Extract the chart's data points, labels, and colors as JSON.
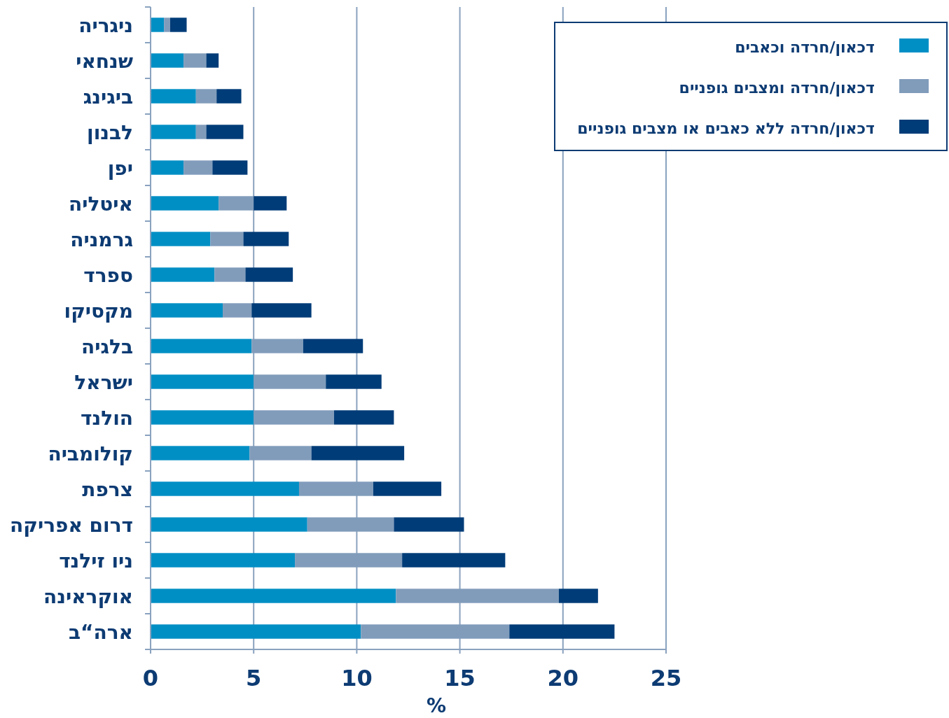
{
  "chart_data": {
    "type": "bar",
    "orientation": "horizontal",
    "stacked": true,
    "xlabel": "%",
    "categories": [
      "ניגריה",
      "שנחאי",
      "ביגינג",
      "לבנון",
      "יפן",
      "איטליה",
      "גרמניה",
      "ספרד",
      "מקסיקו",
      "בלגיה",
      "ישראל",
      "הולנד",
      "קולומביה",
      "צרפת",
      "דרום אפריקה",
      "ניו זילנד",
      "אוקראינה",
      "ארה“ב"
    ],
    "series": [
      {
        "name": "דכאון/חרדה וכאבים",
        "color": "#008fc5",
        "values": [
          0.65,
          1.6,
          2.2,
          2.2,
          1.6,
          3.3,
          2.9,
          3.1,
          3.5,
          4.9,
          5.0,
          5.0,
          4.8,
          7.2,
          7.6,
          7.0,
          11.9,
          10.2
        ]
      },
      {
        "name": "דכאון/חרדה ומצבים גופניים",
        "color": "#819cbb",
        "values": [
          0.3,
          1.1,
          1.0,
          0.5,
          1.4,
          1.7,
          1.6,
          1.5,
          1.4,
          2.5,
          3.5,
          3.9,
          3.0,
          3.6,
          4.2,
          5.2,
          7.9,
          7.2
        ]
      },
      {
        "name": "דכאון/חרדה ללא כאבים או מצבים גופניים",
        "color": "#003c78",
        "values": [
          0.8,
          0.6,
          1.2,
          1.8,
          1.7,
          1.6,
          2.2,
          2.3,
          2.9,
          2.9,
          2.7,
          2.9,
          4.5,
          3.3,
          3.4,
          5.0,
          1.9,
          5.1
        ]
      }
    ],
    "xlim": [
      0,
      25
    ],
    "xticks": [
      0,
      5,
      10,
      15,
      20,
      25
    ],
    "grid": "x",
    "legend": "top right"
  }
}
